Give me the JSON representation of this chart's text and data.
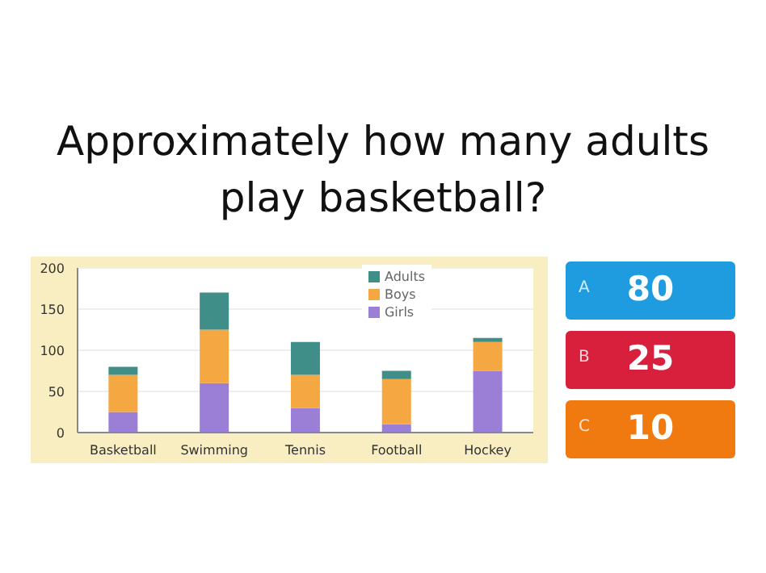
{
  "chart_data": {
    "type": "bar",
    "title": "Approximately how many adults play basketball?",
    "categories": [
      "Basketball",
      "Swimming",
      "Tennis",
      "Football",
      "Hockey"
    ],
    "series": [
      {
        "name": "Girls",
        "color": "#9b7fd6",
        "values": [
          25,
          60,
          30,
          10,
          75
        ]
      },
      {
        "name": "Boys",
        "color": "#f5a742",
        "values": [
          45,
          65,
          40,
          55,
          35
        ]
      },
      {
        "name": "Adults",
        "color": "#3f8f88",
        "values": [
          10,
          45,
          40,
          10,
          5
        ]
      }
    ],
    "stacked": true,
    "ylim": [
      0,
      200
    ],
    "yticks": [
      0,
      50,
      100,
      150,
      200
    ],
    "grid": "y",
    "legend": "top right",
    "annotations": [
      "A",
      "80",
      "B",
      "25",
      "C",
      "10"
    ]
  }
}
